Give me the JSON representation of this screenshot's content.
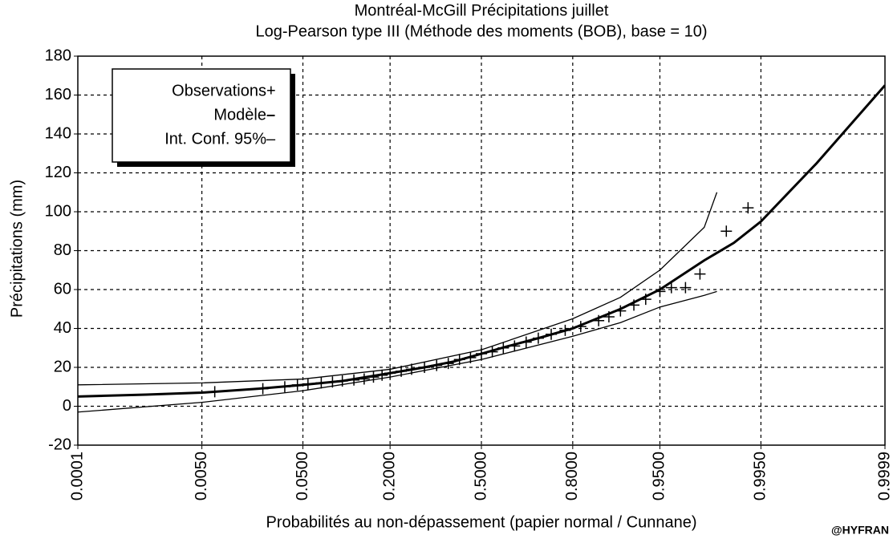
{
  "chart_data": {
    "type": "probability",
    "title": "Montréal-McGill Précipitations juillet",
    "subtitle": "Log-Pearson type III (Méthode des moments (BOB), base = 10)",
    "x_label": "Probabilités au non-dépassement (papier normal / Cunnane)",
    "y_label": "Précipitations (mm)",
    "credit": "@HYFRAN",
    "xscale": "normal",
    "grid": true,
    "legend": "top-left",
    "xlim": [
      0.0001,
      0.9999
    ],
    "xticks": [
      {
        "value": 0.0001,
        "label": "0.0001"
      },
      {
        "value": 0.005,
        "label": "0.0050"
      },
      {
        "value": 0.05,
        "label": "0.0500"
      },
      {
        "value": 0.2,
        "label": "0.2000"
      },
      {
        "value": 0.5,
        "label": "0.5000"
      },
      {
        "value": 0.8,
        "label": "0.8000"
      },
      {
        "value": 0.95,
        "label": "0.9500"
      },
      {
        "value": 0.995,
        "label": "0.9950"
      },
      {
        "value": 0.9999,
        "label": "0.9999"
      }
    ],
    "ylim": [
      -20,
      180
    ],
    "yticks": [
      -20,
      0,
      20,
      40,
      60,
      80,
      100,
      120,
      140,
      160,
      180
    ],
    "observations": {
      "name": "Observations",
      "symbol": "+",
      "color": "#000000",
      "x": [
        0.007,
        0.022,
        0.035,
        0.045,
        0.055,
        0.07,
        0.085,
        0.1,
        0.12,
        0.14,
        0.16,
        0.18,
        0.2,
        0.23,
        0.26,
        0.3,
        0.34,
        0.38,
        0.42,
        0.46,
        0.5,
        0.54,
        0.58,
        0.62,
        0.66,
        0.7,
        0.74,
        0.78,
        0.82,
        0.86,
        0.88,
        0.9,
        0.92,
        0.935,
        0.95,
        0.96,
        0.97,
        0.978,
        0.988,
        0.993
      ],
      "values": [
        7.5,
        9,
        10,
        11,
        11.5,
        12,
        12.5,
        13,
        13.5,
        14,
        15,
        16,
        17,
        18,
        19,
        20,
        21,
        22,
        24,
        25,
        27,
        28,
        30,
        31,
        33,
        35,
        37,
        39,
        41,
        44,
        46,
        49,
        52,
        55,
        59,
        61,
        61,
        68,
        90,
        102
      ]
    },
    "model": {
      "name": "Modèle",
      "symbol": "–",
      "color": "#000000",
      "x": [
        0.0001,
        0.001,
        0.005,
        0.02,
        0.05,
        0.1,
        0.2,
        0.3,
        0.4,
        0.5,
        0.6,
        0.7,
        0.8,
        0.9,
        0.95,
        0.98,
        0.99,
        0.995,
        0.999,
        0.9999
      ],
      "values": [
        5,
        6,
        7,
        9,
        11,
        13,
        17,
        20,
        23,
        27,
        31,
        35,
        40,
        50,
        60,
        75,
        84,
        95,
        125,
        165
      ]
    },
    "interval": {
      "name": "Int. Conf. 95%",
      "symbol": "–",
      "color": "#000000",
      "x": [
        0.0001,
        0.005,
        0.05,
        0.2,
        0.5,
        0.8,
        0.9,
        0.95,
        0.98,
        0.985
      ],
      "upper": [
        11,
        12,
        14,
        19,
        29,
        45,
        56,
        70,
        92,
        110
      ],
      "lower": [
        -3,
        2,
        8,
        15,
        24,
        36,
        43,
        51,
        57,
        59
      ]
    }
  }
}
